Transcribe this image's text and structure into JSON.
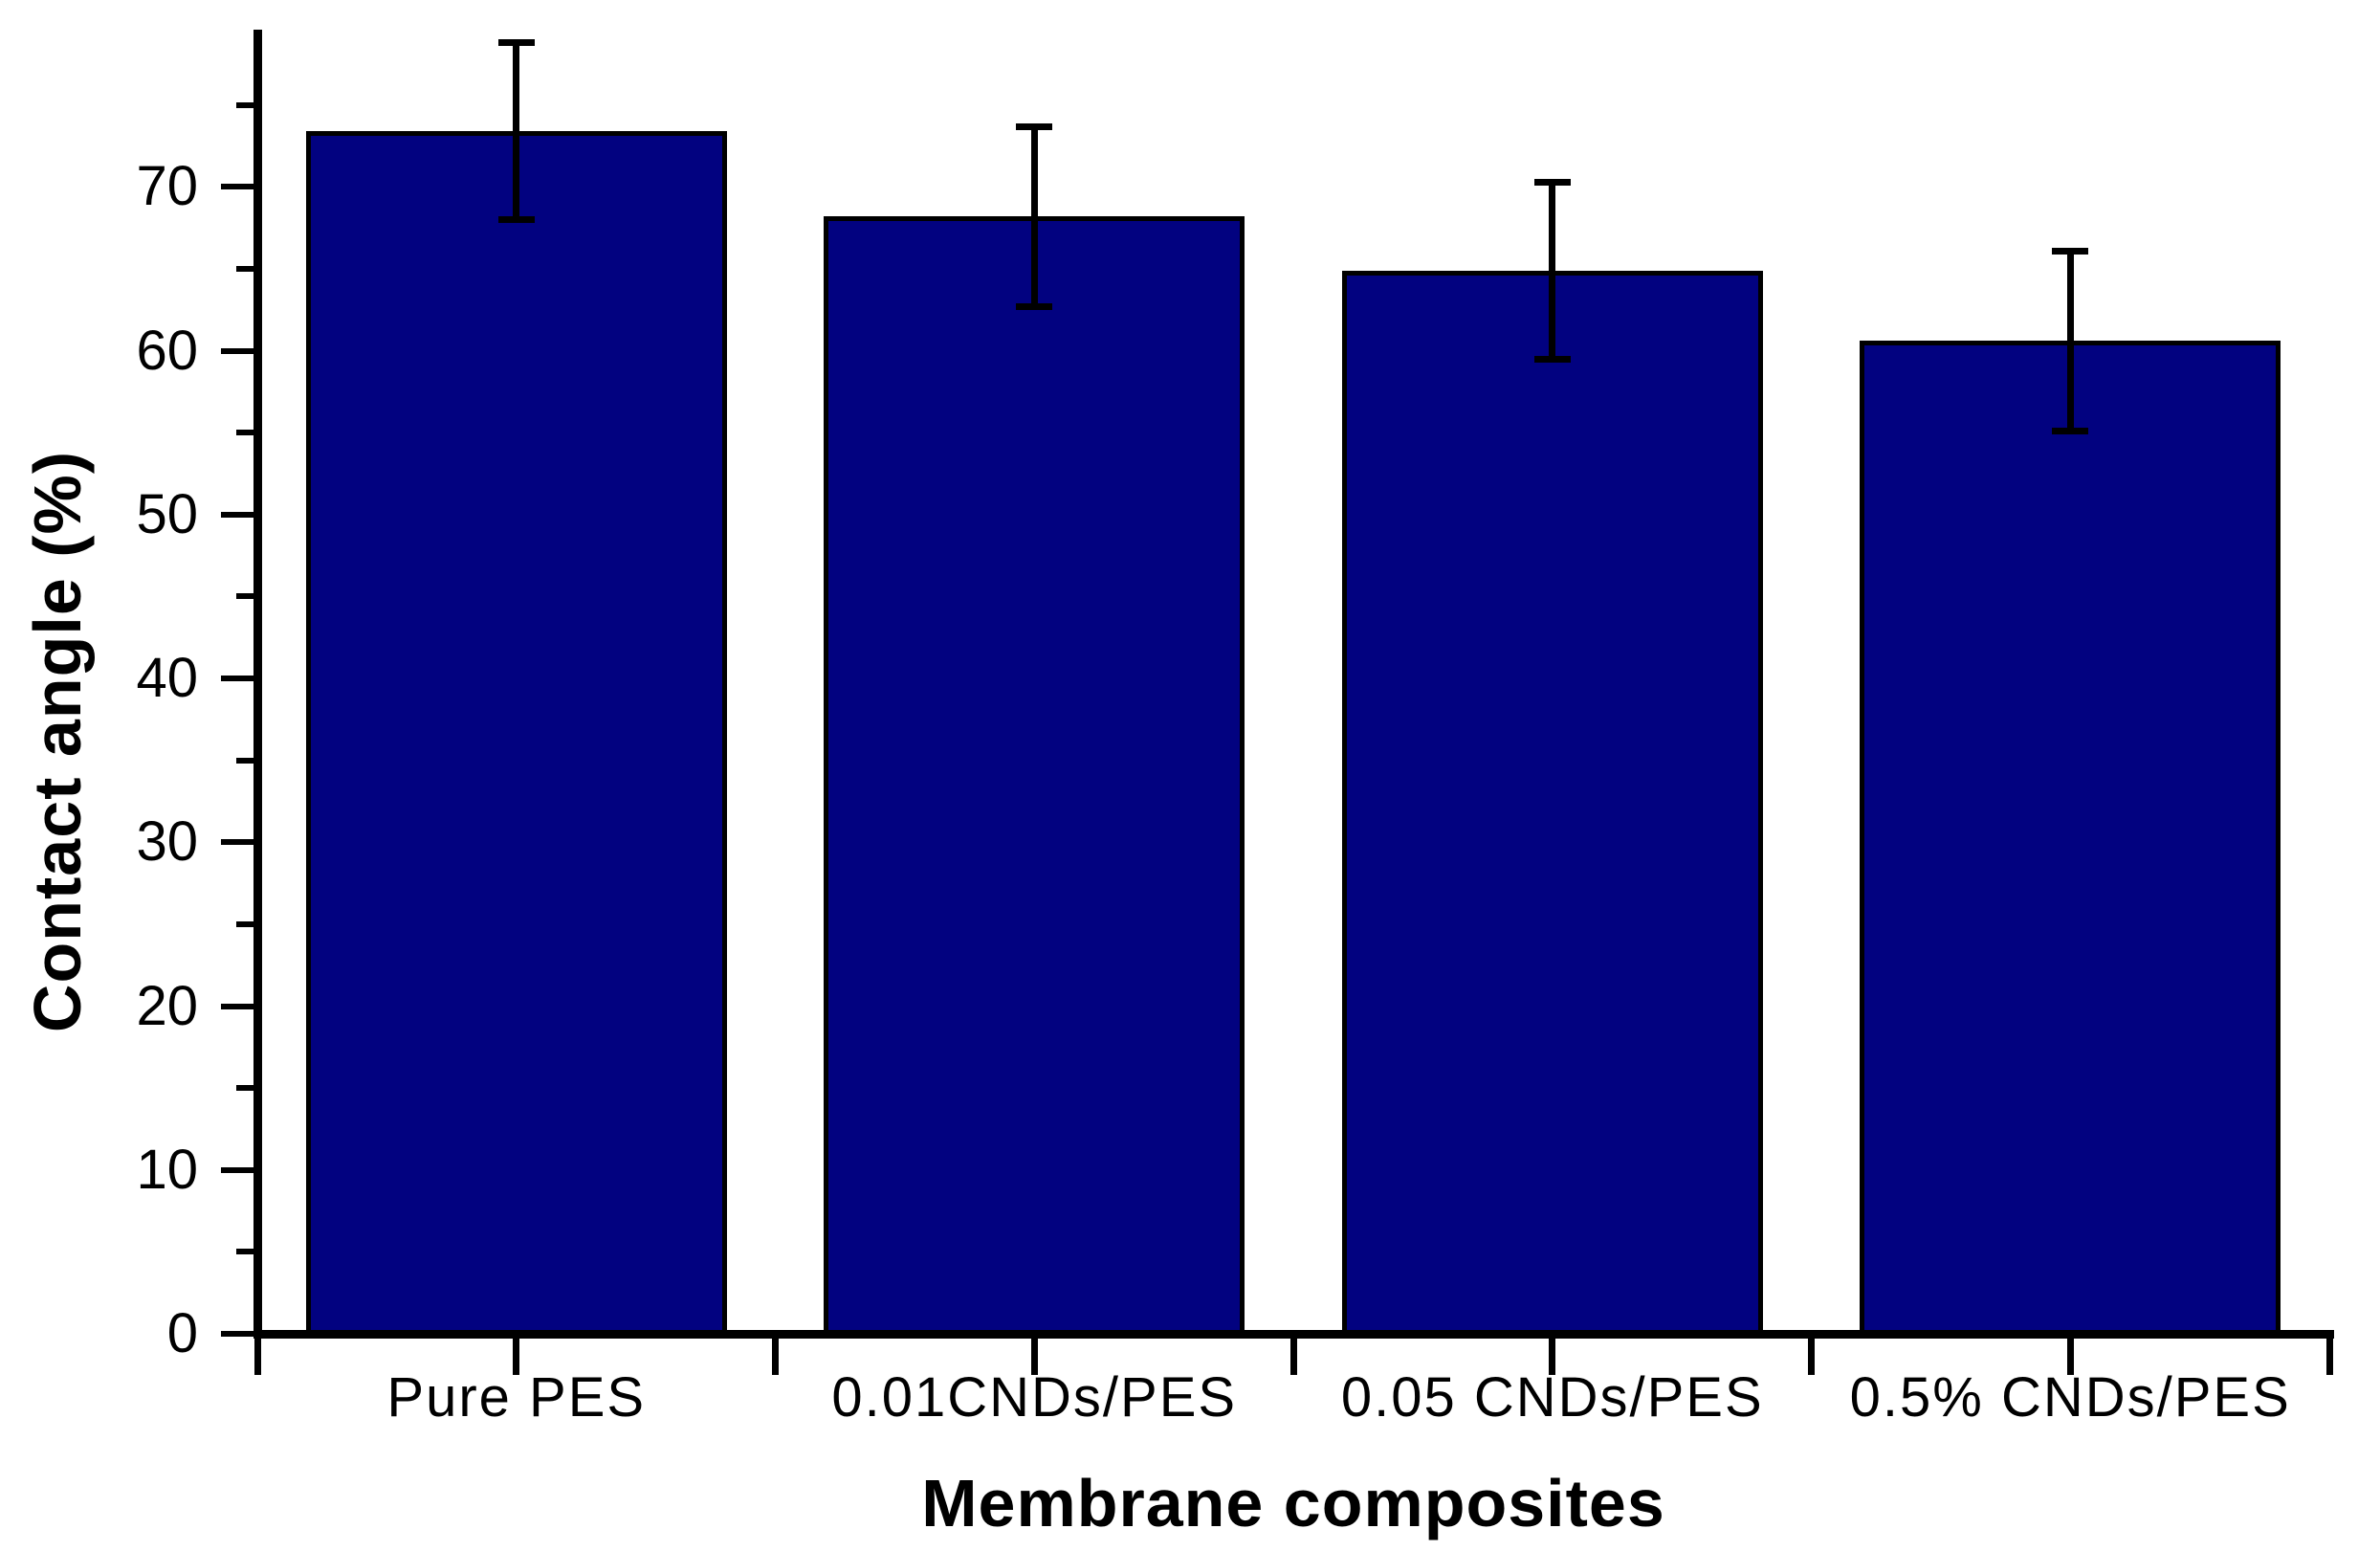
{
  "chart_data": {
    "type": "bar",
    "title": "",
    "xlabel": "Membrane composites",
    "ylabel": "Contact angle (%)",
    "categories": [
      "Pure PES",
      "0.01CNDs/PES",
      "0.05 CNDs/PES",
      "0.5% CNDs/PES"
    ],
    "values": [
      73.4,
      68.2,
      64.9,
      60.6
    ],
    "errors": [
      5.4,
      5.5,
      5.4,
      5.5
    ],
    "ylim": [
      0,
      79.6
    ],
    "yticks_major": [
      0,
      10,
      20,
      30,
      40,
      50,
      60,
      70
    ],
    "yticks_minor": [
      5,
      15,
      25,
      35,
      45,
      55,
      65,
      75
    ],
    "bar_color": "#020280",
    "bar_border_color": "#000000",
    "error_bar_color": "#000000",
    "axis_color": "#000000",
    "background_color": "#ffffff",
    "grid": false,
    "legend": false
  }
}
